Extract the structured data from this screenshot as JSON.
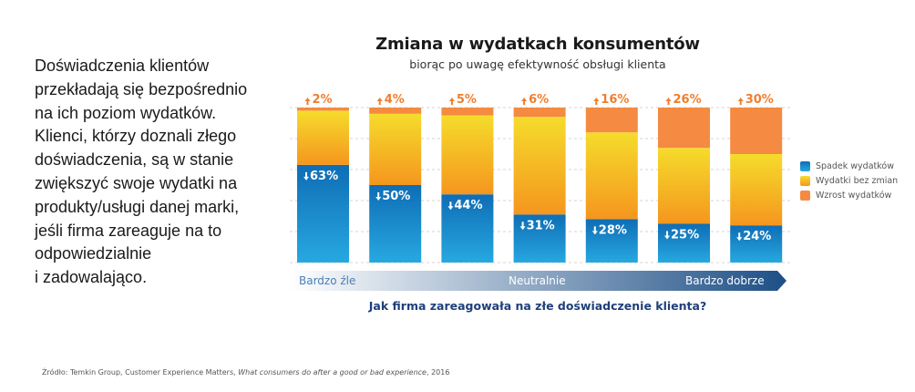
{
  "intro": {
    "lines": [
      "Doświadczenia klientów",
      "przekładają się bezpośrednio",
      "na ich poziom wydatków.",
      "Klienci, którzy doznali złego",
      "doświadczenia, są w stanie",
      "zwiększyć swoje wydatki na",
      "produkty/usługi danej marki,",
      "jeśli firma zareaguje na to",
      "odpowiedzialnie",
      "i zadowalająco."
    ]
  },
  "colors": {
    "decrease_top": "#0e6db5",
    "decrease_bottom": "#27a8e0",
    "nochange_top": "#f5dc2c",
    "nochange_bottom": "#f5961e",
    "increase": "#f58a42",
    "increase_label": "#f07e2e",
    "question": "#1f3f7a",
    "scale_light": "#ffffff",
    "scale_dark": "#1d4f86"
  },
  "chart_data": {
    "type": "bar",
    "stacked": true,
    "title": "Zmiana w wydatkach konsumentów",
    "subtitle": "biorąc po uwagę efektywność obsługi klienta",
    "xlabel": "Jak firma zareagowała na złe doświadczenie klienta?",
    "ylabel": "",
    "ylim": [
      0,
      100
    ],
    "grid": true,
    "legend_position": "right",
    "categories": [
      "1",
      "2",
      "3",
      "4",
      "5",
      "6",
      "7"
    ],
    "scale_labels": [
      "Bardzo źle",
      "Neutralnie",
      "Bardzo dobrze"
    ],
    "series": [
      {
        "name": "Spadek wydatków",
        "values": [
          63,
          50,
          44,
          31,
          28,
          25,
          24
        ]
      },
      {
        "name": "Wydatki bez zmian",
        "values": [
          35,
          46,
          51,
          63,
          56,
          49,
          46
        ]
      },
      {
        "name": "Wzrost wydatków",
        "values": [
          2,
          4,
          5,
          6,
          16,
          26,
          30
        ]
      }
    ],
    "decrease_labels": [
      "63%",
      "50%",
      "44%",
      "31%",
      "28%",
      "25%",
      "24%"
    ],
    "increase_labels": [
      "2%",
      "4%",
      "5%",
      "6%",
      "16%",
      "26%",
      "30%"
    ]
  },
  "source": {
    "prefix": "Źródło: Temkin Group, Customer Experience Matters, ",
    "title": "What consumers do after a good or bad experience",
    "suffix": ", 2016"
  }
}
